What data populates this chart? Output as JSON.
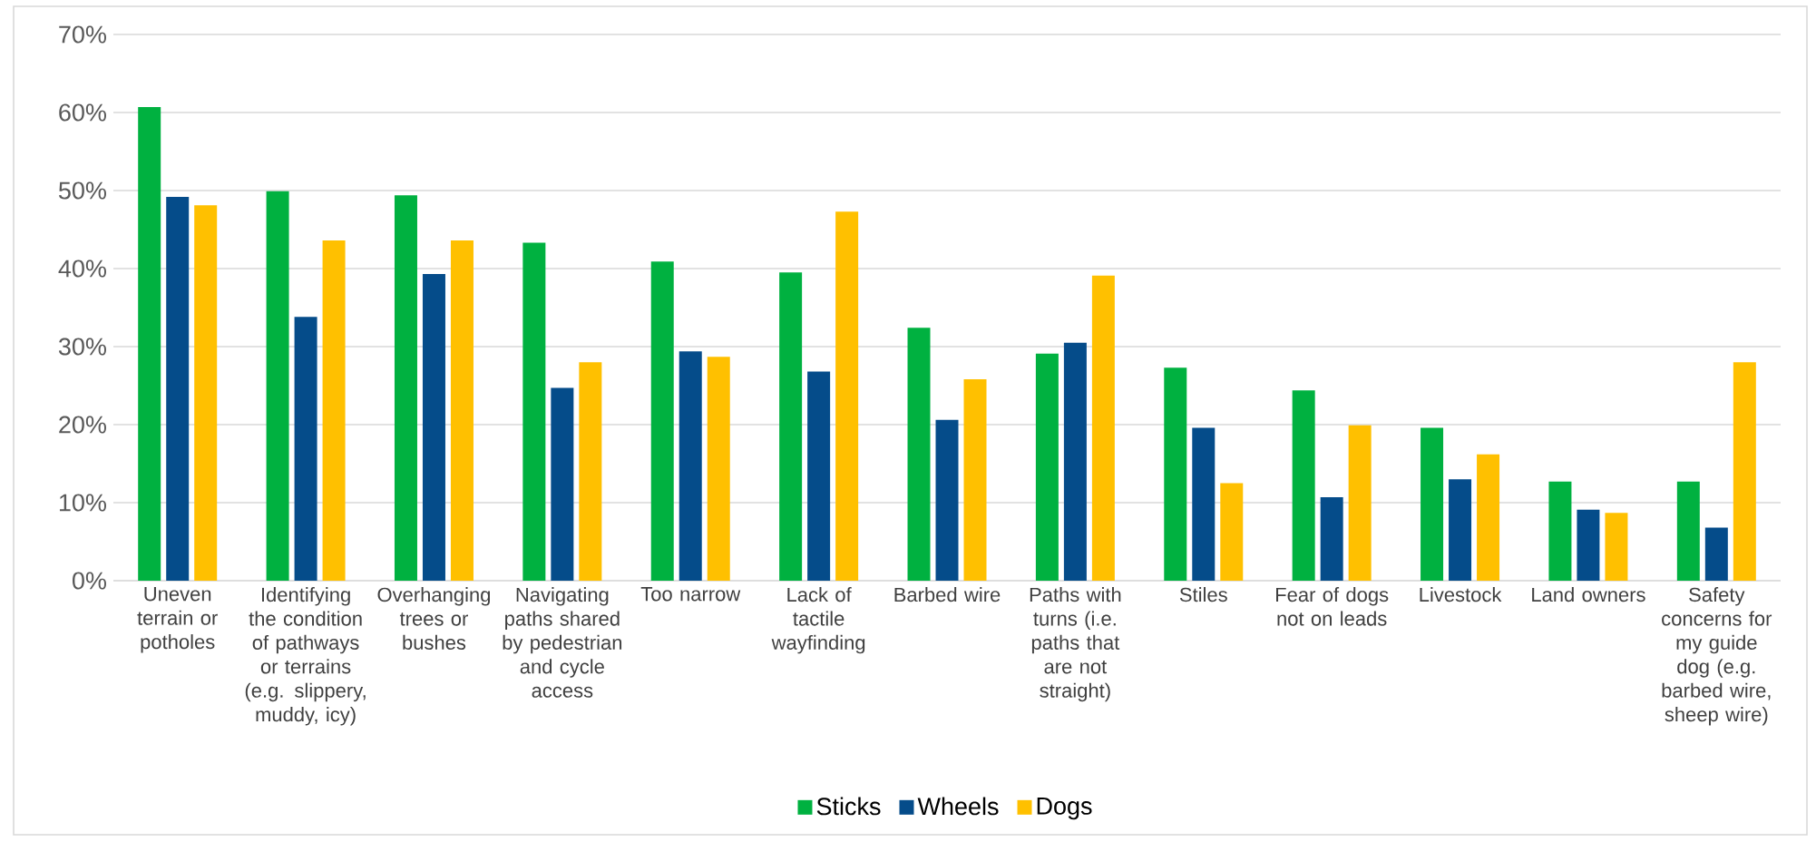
{
  "chart_data": {
    "type": "bar",
    "categories": [
      "Uneven terrain or potholes",
      "Identifying the condition of pathways or terrains (e.g. slippery, muddy, icy)",
      "Overhanging trees or bushes",
      "Navigating paths shared by pedestrian and cycle access",
      "Too narrow",
      "Lack of tactile wayfinding",
      "Barbed wire",
      "Paths with turns (i.e. paths that are not straight)",
      "Stiles",
      "Fear of dogs not on leads",
      "Livestock",
      "Land owners",
      "Safety concerns for my guide dog (e.g. barbed wire, sheep wire)"
    ],
    "series": [
      {
        "name": "Sticks",
        "color": "#00b140",
        "values": [
          60.7,
          49.9,
          49.4,
          43.3,
          40.9,
          39.5,
          32.4,
          29.1,
          27.3,
          24.4,
          19.6,
          12.7,
          12.7
        ]
      },
      {
        "name": "Wheels",
        "color": "#054c8a",
        "values": [
          49.2,
          33.8,
          39.3,
          24.7,
          29.4,
          26.8,
          20.6,
          30.5,
          19.6,
          10.7,
          13.0,
          9.1,
          6.8
        ]
      },
      {
        "name": "Dogs",
        "color": "#ffc000",
        "values": [
          48.1,
          43.6,
          43.6,
          28.0,
          28.7,
          47.3,
          25.8,
          39.1,
          12.5,
          19.9,
          16.2,
          8.7,
          28.0
        ]
      }
    ],
    "ylim": [
      0,
      70
    ],
    "yticks": [
      {
        "value": 0,
        "label": "0%"
      },
      {
        "value": 10,
        "label": "10%"
      },
      {
        "value": 20,
        "label": "20%"
      },
      {
        "value": 30,
        "label": "30%"
      },
      {
        "value": 40,
        "label": "40%"
      },
      {
        "value": 50,
        "label": "50%"
      },
      {
        "value": 60,
        "label": "60%"
      },
      {
        "value": 70,
        "label": "70%"
      }
    ],
    "grid": "y",
    "legend": "bottom"
  }
}
